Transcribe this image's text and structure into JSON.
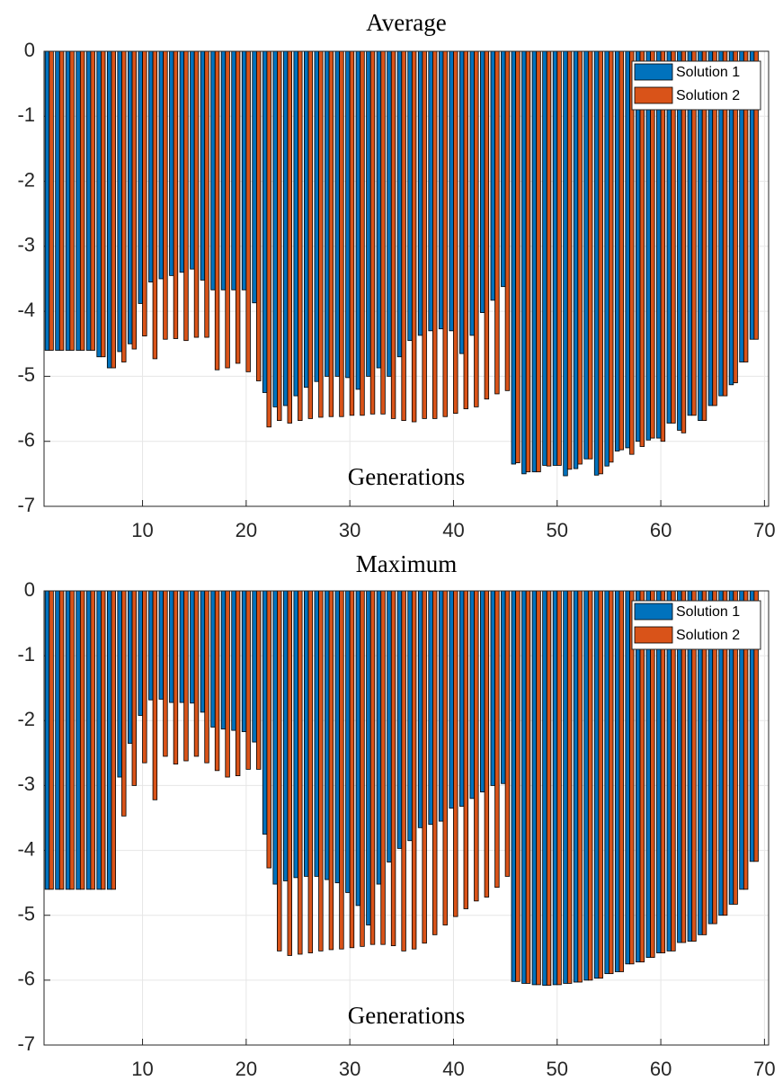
{
  "chart_data": [
    {
      "type": "bar",
      "title": "Average",
      "xlabel": "Generations",
      "x": [
        1,
        2,
        3,
        4,
        5,
        6,
        7,
        8,
        9,
        10,
        11,
        12,
        13,
        14,
        15,
        16,
        17,
        18,
        19,
        20,
        21,
        22,
        23,
        24,
        25,
        26,
        27,
        28,
        29,
        30,
        31,
        32,
        33,
        34,
        35,
        36,
        37,
        38,
        39,
        40,
        41,
        42,
        43,
        44,
        45,
        46,
        47,
        48,
        49,
        50,
        51,
        52,
        53,
        54,
        55,
        56,
        57,
        58,
        59,
        60,
        61,
        62,
        63,
        64,
        65,
        66,
        67,
        68,
        69
      ],
      "series": [
        {
          "name": "Solution 1",
          "color": "#0072bd",
          "values": [
            -4.6,
            -4.6,
            -4.6,
            -4.6,
            -4.6,
            -4.7,
            -4.87,
            -4.62,
            -4.5,
            -3.88,
            -3.55,
            -3.5,
            -3.45,
            -3.4,
            -3.35,
            -3.52,
            -3.67,
            -3.67,
            -3.67,
            -3.67,
            -3.87,
            -5.25,
            -5.47,
            -5.45,
            -5.3,
            -5.17,
            -5.08,
            -5.0,
            -5.0,
            -5.02,
            -5.2,
            -5.0,
            -4.87,
            -5.0,
            -4.7,
            -4.45,
            -4.37,
            -4.3,
            -4.27,
            -4.3,
            -4.65,
            -4.37,
            -4.02,
            -3.83,
            -3.62,
            -6.35,
            -6.5,
            -6.47,
            -6.37,
            -6.37,
            -6.53,
            -6.42,
            -6.27,
            -6.52,
            -6.38,
            -6.15,
            -6.1,
            -6.0,
            -5.98,
            -5.95,
            -5.72,
            -5.83,
            -5.6,
            -5.68,
            -5.45,
            -5.3,
            -5.13,
            -4.78,
            -4.43
          ]
        },
        {
          "name": "Solution 2",
          "color": "#d95319",
          "values": [
            -4.6,
            -4.6,
            -4.6,
            -4.6,
            -4.6,
            -4.7,
            -4.87,
            -4.78,
            -4.58,
            -4.38,
            -4.73,
            -4.43,
            -4.42,
            -4.45,
            -4.4,
            -4.4,
            -4.9,
            -4.87,
            -4.8,
            -4.93,
            -5.07,
            -5.78,
            -5.68,
            -5.72,
            -5.68,
            -5.65,
            -5.63,
            -5.62,
            -5.62,
            -5.6,
            -5.6,
            -5.58,
            -5.58,
            -5.65,
            -5.68,
            -5.7,
            -5.65,
            -5.65,
            -5.62,
            -5.57,
            -5.5,
            -5.47,
            -5.35,
            -5.27,
            -5.22,
            -6.33,
            -6.47,
            -6.47,
            -6.38,
            -6.37,
            -6.43,
            -6.35,
            -6.27,
            -6.5,
            -6.32,
            -6.13,
            -6.2,
            -6.08,
            -5.95,
            -6.0,
            -5.72,
            -5.87,
            -5.6,
            -5.68,
            -5.45,
            -5.3,
            -5.1,
            -4.78,
            -4.43
          ]
        }
      ],
      "xlim": [
        0.5,
        70.4
      ],
      "xticks": [
        10,
        20,
        30,
        40,
        50,
        60,
        70
      ],
      "ylim": [
        -7,
        0
      ],
      "yticks": [
        -7,
        -6,
        -5,
        -4,
        -3,
        -2,
        -1,
        0
      ],
      "grid": true,
      "legend": "northeast"
    },
    {
      "type": "bar",
      "title": "Maximum",
      "xlabel": "Generations",
      "x": [
        1,
        2,
        3,
        4,
        5,
        6,
        7,
        8,
        9,
        10,
        11,
        12,
        13,
        14,
        15,
        16,
        17,
        18,
        19,
        20,
        21,
        22,
        23,
        24,
        25,
        26,
        27,
        28,
        29,
        30,
        31,
        32,
        33,
        34,
        35,
        36,
        37,
        38,
        39,
        40,
        41,
        42,
        43,
        44,
        45,
        46,
        47,
        48,
        49,
        50,
        51,
        52,
        53,
        54,
        55,
        56,
        57,
        58,
        59,
        60,
        61,
        62,
        63,
        64,
        65,
        66,
        67,
        68,
        69
      ],
      "series": [
        {
          "name": "Solution 1",
          "color": "#0072bd",
          "values": [
            -4.6,
            -4.6,
            -4.6,
            -4.6,
            -4.6,
            -4.6,
            -4.6,
            -2.87,
            -2.35,
            -1.92,
            -1.68,
            -1.67,
            -1.72,
            -1.72,
            -1.73,
            -1.87,
            -2.1,
            -2.13,
            -2.15,
            -2.17,
            -2.33,
            -3.75,
            -4.52,
            -4.47,
            -4.42,
            -4.4,
            -4.4,
            -4.45,
            -4.5,
            -4.65,
            -4.85,
            -5.15,
            -4.52,
            -4.18,
            -3.97,
            -3.85,
            -3.65,
            -3.6,
            -3.55,
            -3.35,
            -3.32,
            -3.2,
            -3.1,
            -3.0,
            -2.97,
            -6.02,
            -6.05,
            -6.07,
            -6.08,
            -6.07,
            -6.05,
            -6.03,
            -6.0,
            -5.97,
            -5.9,
            -5.87,
            -5.75,
            -5.72,
            -5.65,
            -5.58,
            -5.55,
            -5.42,
            -5.4,
            -5.3,
            -5.13,
            -5.0,
            -4.83,
            -4.6,
            -4.17
          ]
        },
        {
          "name": "Solution 2",
          "color": "#d95319",
          "values": [
            -4.6,
            -4.6,
            -4.6,
            -4.6,
            -4.6,
            -4.6,
            -4.6,
            -3.47,
            -3.0,
            -2.65,
            -3.22,
            -2.55,
            -2.67,
            -2.62,
            -2.55,
            -2.65,
            -2.77,
            -2.87,
            -2.85,
            -2.75,
            -2.75,
            -4.27,
            -5.55,
            -5.62,
            -5.6,
            -5.58,
            -5.55,
            -5.53,
            -5.52,
            -5.5,
            -5.48,
            -5.45,
            -5.45,
            -5.47,
            -5.55,
            -5.52,
            -5.43,
            -5.3,
            -5.15,
            -5.02,
            -4.9,
            -4.78,
            -4.72,
            -4.57,
            -4.4,
            -6.02,
            -6.05,
            -6.07,
            -6.08,
            -6.07,
            -6.05,
            -6.03,
            -6.0,
            -5.97,
            -5.9,
            -5.87,
            -5.75,
            -5.72,
            -5.65,
            -5.58,
            -5.55,
            -5.42,
            -5.4,
            -5.3,
            -5.13,
            -5.0,
            -4.83,
            -4.6,
            -4.17
          ]
        }
      ],
      "xlim": [
        0.5,
        70.4
      ],
      "xticks": [
        10,
        20,
        30,
        40,
        50,
        60,
        70
      ],
      "ylim": [
        -7,
        0
      ],
      "yticks": [
        -7,
        -6,
        -5,
        -4,
        -3,
        -2,
        -1,
        0
      ],
      "grid": true,
      "legend": "northeast"
    }
  ]
}
